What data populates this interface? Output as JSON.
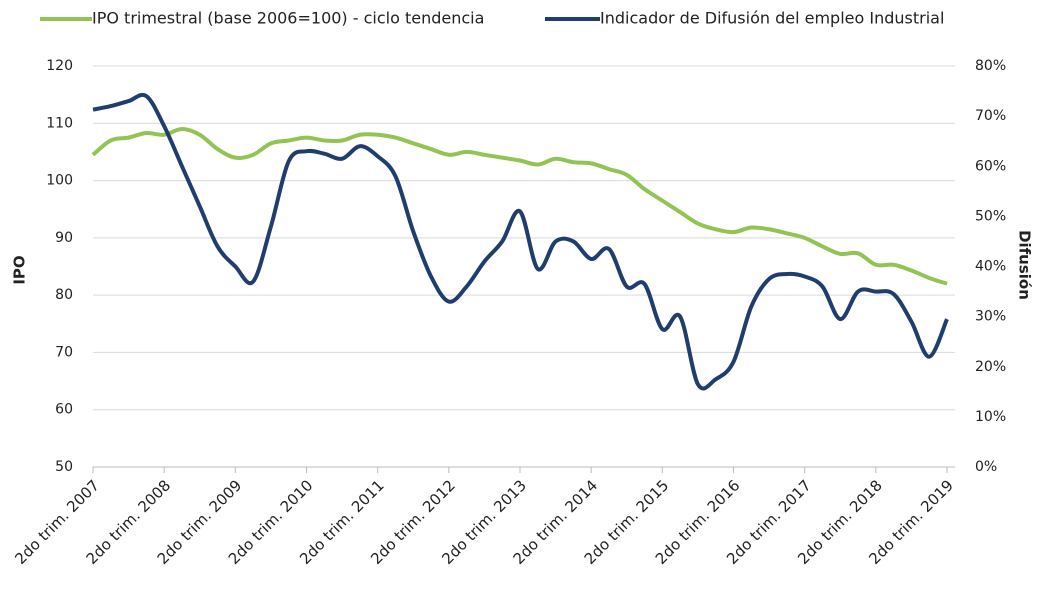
{
  "chart_data": {
    "type": "line",
    "categories": [
      "2do trim. 2007",
      null,
      null,
      null,
      "2do trim. 2008",
      null,
      null,
      null,
      "2do trim. 2009",
      null,
      null,
      null,
      "2do trim. 2010",
      null,
      null,
      null,
      "2do trim. 2011",
      null,
      null,
      null,
      "2do trim. 2012",
      null,
      null,
      null,
      "2do trim. 2013",
      null,
      null,
      null,
      "2do trim. 2014",
      null,
      null,
      null,
      "2do trim. 2015",
      null,
      null,
      null,
      "2do trim. 2016",
      null,
      null,
      null,
      "2do trim. 2017",
      null,
      null,
      null,
      "2do trim. 2018",
      null,
      null,
      null,
      "2do trim. 2019"
    ],
    "series": [
      {
        "name": "IPO trimestral (base 2006=100) - ciclo tendencia",
        "color": "#92c353",
        "values": [
          104.5,
          107,
          107.5,
          108.3,
          108,
          109,
          108,
          105.5,
          104,
          104.5,
          106.5,
          107,
          107.5,
          107,
          107,
          108,
          108,
          107.5,
          106.5,
          105.5,
          104.5,
          105,
          104.5,
          104,
          103.5,
          102.8,
          103.8,
          103.2,
          103,
          102,
          101,
          98.5,
          96.5,
          94.5,
          92.5,
          91.5,
          91,
          91.8,
          91.5,
          90.8,
          90,
          88.5,
          87.2,
          87.3,
          85.3,
          85.3,
          84.3,
          83,
          82
        ]
      },
      {
        "name": "Indicador de Difusión del empleo Industrial",
        "color": "#1f3e6e",
        "axis": "y2",
        "values": [
          71.3,
          72,
          73,
          74,
          68,
          60,
          52,
          44,
          40,
          37,
          48,
          61,
          63,
          62.5,
          61.5,
          64,
          62,
          58,
          47,
          38,
          33,
          36,
          41,
          45,
          51,
          39.5,
          45,
          45,
          41.5,
          43.5,
          36,
          36.5,
          27.5,
          30,
          16.5,
          17.5,
          21,
          32,
          37.5,
          38.5,
          38,
          36,
          29.5,
          35,
          35,
          34.5,
          29,
          22,
          29.5
        ]
      }
    ],
    "ylabel": "IPO",
    "y2label": "Difusión",
    "ylim": [
      50,
      120
    ],
    "yticks": [
      50,
      60,
      70,
      80,
      90,
      100,
      110,
      120
    ],
    "y2lim": [
      0,
      80
    ],
    "y2ticks": [
      {
        "value": 0,
        "label": "0%"
      },
      {
        "value": 10,
        "label": "10%"
      },
      {
        "value": 20,
        "label": "20%"
      },
      {
        "value": 30,
        "label": "30%"
      },
      {
        "value": 40,
        "label": "40%"
      },
      {
        "value": 50,
        "label": "50%"
      },
      {
        "value": 60,
        "label": "60%"
      },
      {
        "value": 70,
        "label": "70%"
      },
      {
        "value": 80,
        "label": "80%"
      }
    ],
    "grid": true,
    "legend": "top"
  }
}
